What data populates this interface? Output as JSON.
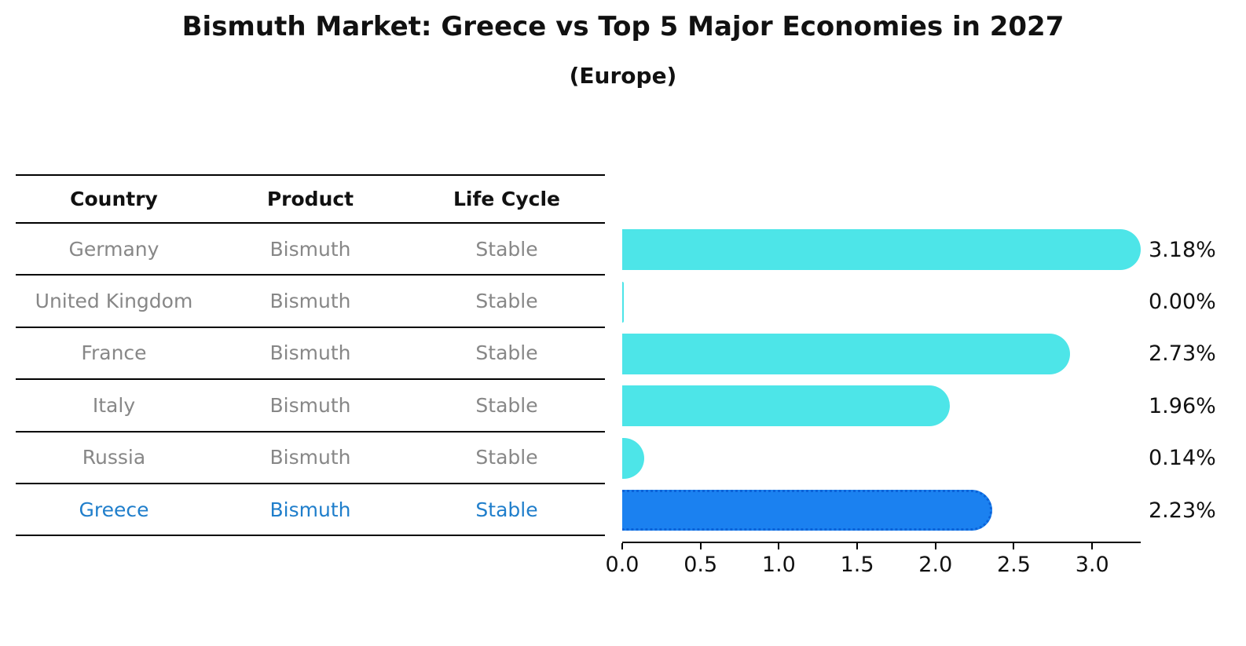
{
  "title": "Bismuth Market: Greece vs Top 5 Major Economies in 2027",
  "subtitle": "(Europe)",
  "table": {
    "headers": [
      "Country",
      "Product",
      "Life Cycle"
    ],
    "rows": [
      {
        "country": "Germany",
        "product": "Bismuth",
        "life_cycle": "Stable",
        "highlight": false
      },
      {
        "country": "United Kingdom",
        "product": "Bismuth",
        "life_cycle": "Stable",
        "highlight": false
      },
      {
        "country": "France",
        "product": "Bismuth",
        "life_cycle": "Stable",
        "highlight": false
      },
      {
        "country": "Italy",
        "product": "Bismuth",
        "life_cycle": "Stable",
        "highlight": false
      },
      {
        "country": "Russia",
        "product": "Bismuth",
        "life_cycle": "Stable",
        "highlight": false
      },
      {
        "country": "Greece",
        "product": "Bismuth",
        "life_cycle": "Stable",
        "highlight": true
      }
    ]
  },
  "chart_data": {
    "type": "bar",
    "orientation": "horizontal",
    "title": "Bismuth Market: Greece vs Top 5 Major Economies in 2027",
    "subtitle": "(Europe)",
    "categories": [
      "Germany",
      "United Kingdom",
      "France",
      "Italy",
      "Russia",
      "Greece"
    ],
    "values": [
      3.18,
      0.0,
      2.73,
      1.96,
      0.14,
      2.23
    ],
    "value_labels": [
      "3.18%",
      "0.00%",
      "2.73%",
      "1.96%",
      "0.14%",
      "2.23%"
    ],
    "xticks": [
      "0.0",
      "0.5",
      "1.0",
      "1.5",
      "2.0",
      "2.5",
      "3.0"
    ],
    "xlim": [
      0,
      3.31
    ],
    "xlabel": "",
    "ylabel": "",
    "grid": false,
    "legend": false,
    "bar_color": "#4de5e8",
    "highlight_color": "#1b81f0",
    "highlight_border_color": "#0b62d8",
    "highlight_index": 5,
    "highlight_text_color": "#1f7ecb",
    "table_text_color": "#878787"
  }
}
